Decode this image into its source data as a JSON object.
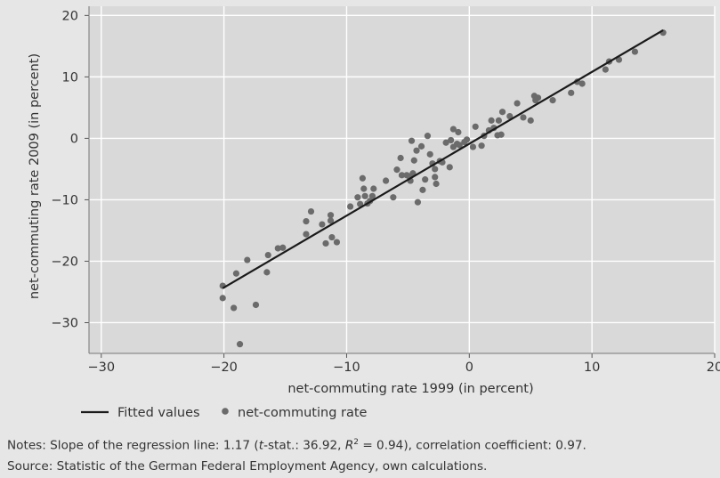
{
  "chart_data": {
    "type": "scatter",
    "xlabel": "net-commuting rate 1999 (in percent)",
    "ylabel": "net-commuting rate 2009 (in percent)",
    "xlim": [
      -31,
      20
    ],
    "ylim": [
      -35,
      21.5
    ],
    "xticks": [
      -30,
      -20,
      -10,
      0,
      10,
      20
    ],
    "yticks": [
      -30,
      -20,
      -10,
      0,
      10,
      20
    ],
    "x_tick_labels": [
      "−30",
      "−20",
      "−10",
      "0",
      "10",
      "20"
    ],
    "y_tick_labels": [
      "−30",
      "−20",
      "−10",
      "0",
      "10",
      "20"
    ],
    "grid": true,
    "legend_position": "bottom-left",
    "colors": {
      "panel": "#d9d9d9",
      "grid": "#ffffff",
      "points": "#6b6b6b",
      "fit_line": "#1a1a1a",
      "background": "#e6e6e6"
    },
    "series": [
      {
        "name": "Fitted values",
        "kind": "line",
        "x": [
          -20.1,
          15.8
        ],
        "y": [
          -24.4,
          17.6
        ]
      },
      {
        "name": "net-commuting rate",
        "kind": "scatter",
        "points": [
          [
            -20.1,
            -24.0
          ],
          [
            -20.1,
            -26.0
          ],
          [
            -19.2,
            -27.6
          ],
          [
            -19.0,
            -22.0
          ],
          [
            -18.7,
            -33.5
          ],
          [
            -18.1,
            -19.8
          ],
          [
            -17.4,
            -27.1
          ],
          [
            -16.5,
            -21.8
          ],
          [
            -16.4,
            -19.0
          ],
          [
            -15.6,
            -17.9
          ],
          [
            -15.2,
            -17.8
          ],
          [
            -13.3,
            -15.6
          ],
          [
            -13.3,
            -13.5
          ],
          [
            -12.9,
            -11.9
          ],
          [
            -12.0,
            -14.0
          ],
          [
            -11.7,
            -17.1
          ],
          [
            -11.3,
            -12.5
          ],
          [
            -11.3,
            -13.4
          ],
          [
            -11.2,
            -16.1
          ],
          [
            -10.8,
            -16.9
          ],
          [
            -9.7,
            -11.1
          ],
          [
            -9.1,
            -9.6
          ],
          [
            -8.9,
            -10.7
          ],
          [
            -8.7,
            -6.5
          ],
          [
            -8.6,
            -8.2
          ],
          [
            -8.5,
            -9.4
          ],
          [
            -8.3,
            -10.6
          ],
          [
            -8.1,
            -10.2
          ],
          [
            -7.9,
            -9.4
          ],
          [
            -7.8,
            -8.2
          ],
          [
            -6.8,
            -6.9
          ],
          [
            -6.2,
            -9.6
          ],
          [
            -5.9,
            -5.1
          ],
          [
            -5.6,
            -3.2
          ],
          [
            -5.5,
            -6.0
          ],
          [
            -5.1,
            -6.0
          ],
          [
            -4.9,
            -6.2
          ],
          [
            -4.8,
            -6.9
          ],
          [
            -4.7,
            -0.4
          ],
          [
            -4.6,
            -5.7
          ],
          [
            -4.5,
            -3.6
          ],
          [
            -4.3,
            -2.0
          ],
          [
            -4.2,
            -10.4
          ],
          [
            -3.9,
            -1.3
          ],
          [
            -3.8,
            -8.4
          ],
          [
            -3.6,
            -6.7
          ],
          [
            -3.4,
            0.4
          ],
          [
            -3.2,
            -2.6
          ],
          [
            -3.0,
            -4.1
          ],
          [
            -2.8,
            -5.0
          ],
          [
            -2.8,
            -6.3
          ],
          [
            -2.7,
            -7.4
          ],
          [
            -2.4,
            -3.7
          ],
          [
            -2.2,
            -3.9
          ],
          [
            -1.9,
            -0.7
          ],
          [
            -1.6,
            -4.7
          ],
          [
            -1.5,
            -0.3
          ],
          [
            -1.3,
            1.5
          ],
          [
            -1.3,
            -1.4
          ],
          [
            -1.0,
            -0.9
          ],
          [
            -0.9,
            1.0
          ],
          [
            -0.8,
            -1.1
          ],
          [
            -0.4,
            -0.6
          ],
          [
            -0.2,
            -0.2
          ],
          [
            0.3,
            -1.4
          ],
          [
            0.5,
            1.9
          ],
          [
            1.0,
            -1.2
          ],
          [
            1.2,
            0.4
          ],
          [
            1.6,
            1.3
          ],
          [
            1.8,
            2.9
          ],
          [
            2.0,
            1.7
          ],
          [
            2.3,
            0.5
          ],
          [
            2.4,
            2.9
          ],
          [
            2.6,
            0.6
          ],
          [
            2.7,
            4.3
          ],
          [
            3.3,
            3.6
          ],
          [
            3.9,
            5.7
          ],
          [
            4.4,
            3.4
          ],
          [
            5.0,
            2.9
          ],
          [
            5.3,
            6.9
          ],
          [
            5.4,
            6.2
          ],
          [
            5.6,
            6.6
          ],
          [
            6.8,
            6.2
          ],
          [
            8.3,
            7.4
          ],
          [
            8.8,
            9.2
          ],
          [
            9.2,
            8.9
          ],
          [
            11.1,
            11.2
          ],
          [
            11.4,
            12.5
          ],
          [
            12.2,
            12.8
          ],
          [
            13.5,
            14.1
          ],
          [
            15.8,
            17.2
          ]
        ]
      }
    ]
  },
  "legend": {
    "items": [
      {
        "label": "Fitted values",
        "symbol": "line"
      },
      {
        "label": "net-commuting rate",
        "symbol": "dot"
      }
    ]
  },
  "notes": {
    "line1_prefix": "Notes: Slope of the regression line: 1.17 (",
    "line1_t": "t",
    "line1_mid": "-stat.: 36.92, ",
    "line1_r": "R",
    "line1_sup": "2",
    "line1_suffix": " = 0.94), correlation coefficient: 0.97.",
    "line2": "Source: Statistic of the German Federal Employment Agency, own calculations."
  }
}
